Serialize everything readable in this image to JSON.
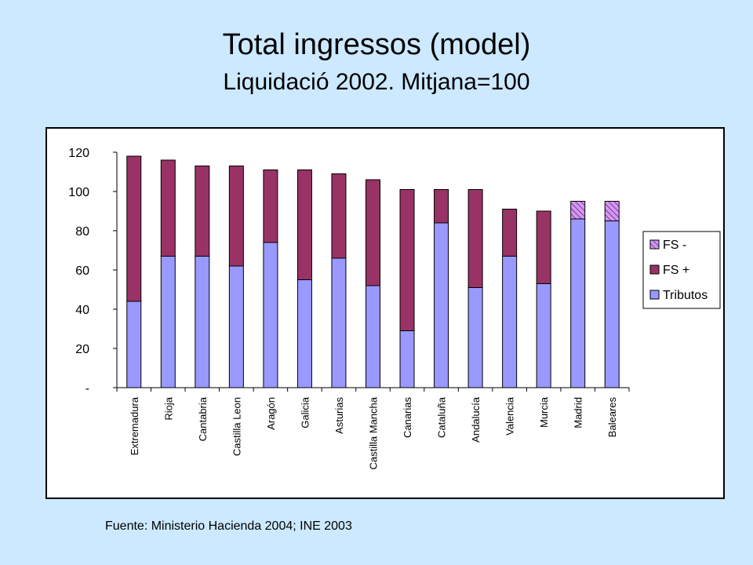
{
  "title": "Total ingressos (model)",
  "subtitle": "Liquidació 2002. Mitjana=100",
  "source": "Fuente: Ministerio Hacienda 2004; INE 2003",
  "colors": {
    "tributos": "#9999ff",
    "fs_plus": "#993366",
    "fs_minus_hatch": "#993366",
    "fs_minus_bg": "#cc99ff",
    "plot_bg": "#ffffff",
    "page_bg": "#cce9ff"
  },
  "chart_data": {
    "type": "bar",
    "stacked": true,
    "categories": [
      "Extremadura",
      "Rioja",
      "Cantabria",
      "Castilla Leon",
      "Aragón",
      "Galicia",
      "Asturias",
      "Castilla Mancha",
      "Canarias",
      "Cataluña",
      "Andalucía",
      "Valencia",
      "Murcia",
      "Madrid",
      "Baleares"
    ],
    "series": [
      {
        "name": "Tributos",
        "values": [
          44,
          67,
          67,
          62,
          74,
          55,
          66,
          52,
          29,
          84,
          51,
          67,
          53,
          86,
          85
        ]
      },
      {
        "name": "FS +",
        "values": [
          74,
          49,
          46,
          51,
          37,
          56,
          43,
          54,
          72,
          17,
          50,
          24,
          37,
          0,
          0
        ]
      },
      {
        "name": "FS -",
        "values": [
          0,
          0,
          0,
          0,
          0,
          0,
          0,
          0,
          0,
          0,
          0,
          0,
          0,
          9,
          10
        ]
      }
    ],
    "ylim": [
      0,
      120
    ],
    "yticks": [
      {
        "value": 0,
        "label": "-"
      },
      {
        "value": 20,
        "label": "20"
      },
      {
        "value": 40,
        "label": "40"
      },
      {
        "value": 60,
        "label": "60"
      },
      {
        "value": 80,
        "label": "80"
      },
      {
        "value": 100,
        "label": "100"
      },
      {
        "value": 120,
        "label": "120"
      }
    ],
    "legend": {
      "position": "right",
      "entries": [
        "FS -",
        "FS +",
        "Tributos"
      ]
    },
    "grid": false
  }
}
